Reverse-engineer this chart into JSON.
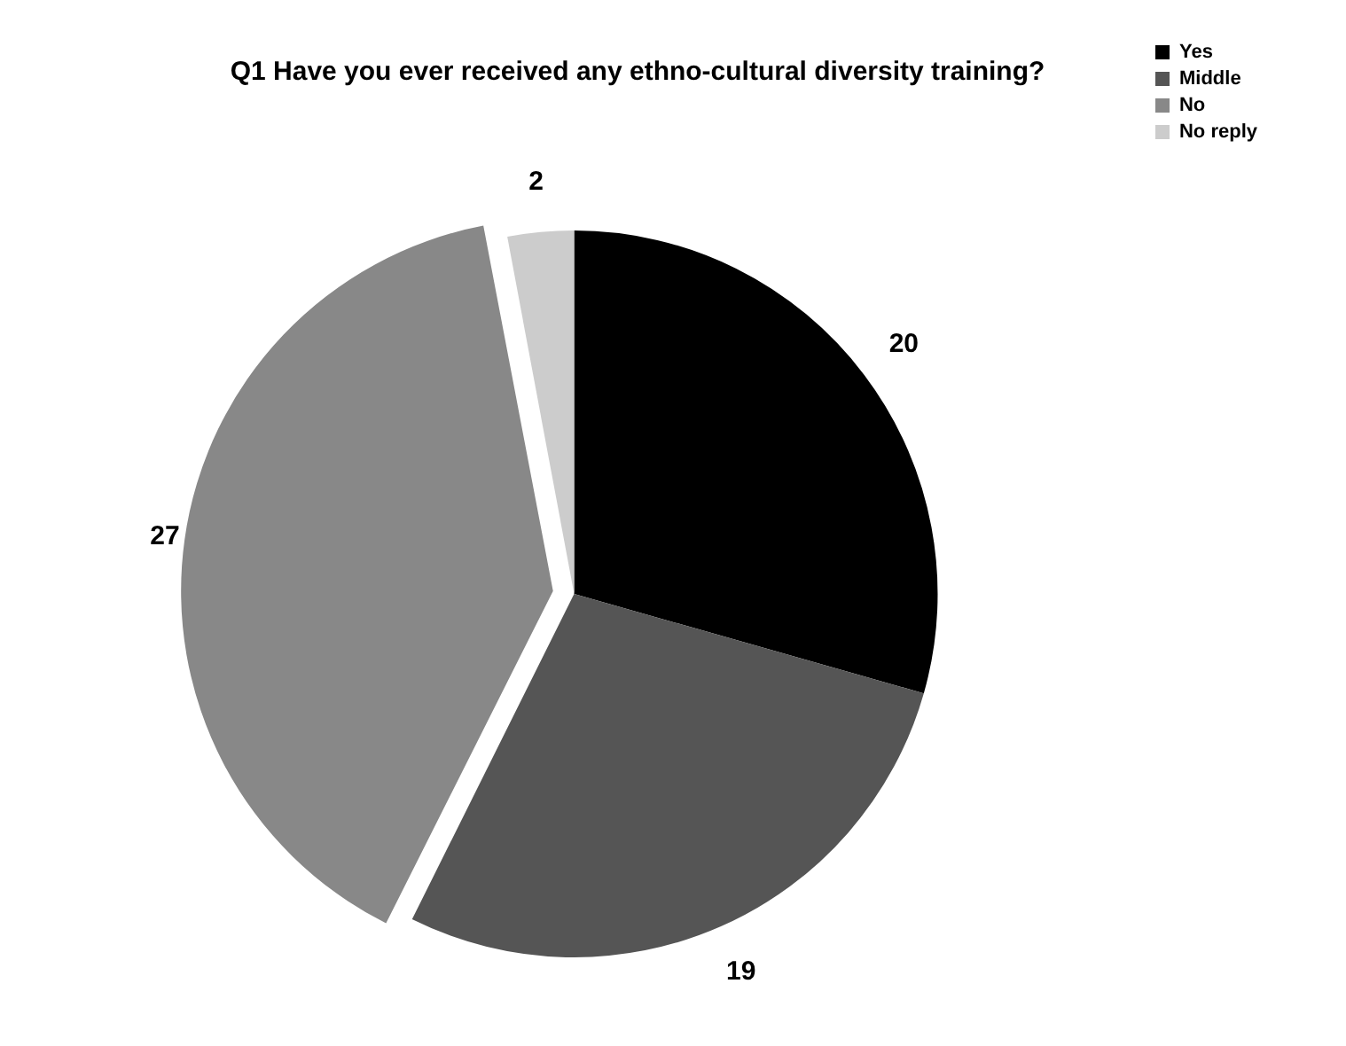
{
  "chart_data": {
    "type": "pie",
    "title": "Q1 Have you ever received any ethno-cultural diversity training?",
    "categories": [
      "Yes",
      "Middle",
      "No",
      "No reply"
    ],
    "values": [
      20,
      19,
      27,
      2
    ],
    "colors": [
      "#000000",
      "#555555",
      "#888888",
      "#cccccc"
    ],
    "data_labels": true,
    "legend": "top right"
  }
}
